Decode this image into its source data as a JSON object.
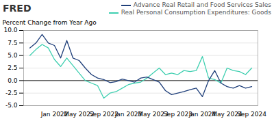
{
  "chart_data": {
    "type": "line",
    "title": "FRED",
    "ylabel": "Percent Change from Year Ago",
    "categories": [
      null,
      null,
      null,
      null,
      "Jan 2022",
      null,
      null,
      null,
      "May 2022",
      null,
      null,
      null,
      "Sep 2022",
      null,
      null,
      null,
      "Jan 2023",
      null,
      null,
      null,
      "May 2023",
      null,
      null,
      null,
      "Sep 2023",
      null,
      null,
      null,
      "Jan 2024",
      null,
      null,
      null,
      "May 2024",
      null,
      null,
      null,
      "Sep 2024"
    ],
    "series": [
      {
        "name": "Advance Real Retail and Food Services Sales",
        "color": "#1f3f7a",
        "values": [
          6.5,
          7.5,
          9.2,
          7.5,
          7.0,
          4.5,
          8.0,
          4.5,
          4.0,
          2.5,
          1.2,
          0.5,
          0.2,
          -0.4,
          -0.2,
          0.3,
          0.0,
          -0.3,
          0.5,
          0.7,
          0.2,
          -0.3,
          -2.0,
          -2.8,
          -2.5,
          -2.2,
          -1.8,
          -1.5,
          -3.2,
          0.0,
          2.0,
          -0.5,
          -1.2,
          -1.5,
          -1.0,
          -1.5,
          -1.2
        ]
      },
      {
        "name": "Real Personal Consumption Expenditures: Goods",
        "color": "#3ecfb0",
        "values": [
          5.0,
          6.2,
          7.2,
          6.5,
          4.2,
          2.8,
          4.5,
          3.0,
          1.5,
          0.0,
          -0.5,
          -1.0,
          -3.5,
          -2.5,
          -2.2,
          -1.5,
          -0.8,
          -0.5,
          -0.3,
          0.5,
          1.5,
          2.5,
          1.2,
          1.5,
          1.2,
          2.0,
          1.8,
          2.0,
          4.8,
          0.5,
          0.2,
          -0.5,
          2.5,
          2.0,
          1.8,
          1.2,
          2.5
        ]
      }
    ],
    "ylim": [
      -5.0,
      10.0
    ],
    "yticks": [
      {
        "value": -5.0,
        "label": "-5.0"
      },
      -2.5,
      {
        "value": 0.0,
        "label": "0.0"
      },
      2.5,
      {
        "value": 5.0,
        "label": "5.0"
      },
      7.5,
      {
        "value": 10.0,
        "label": "10.0"
      }
    ],
    "grid": true,
    "legend": "upper right"
  }
}
